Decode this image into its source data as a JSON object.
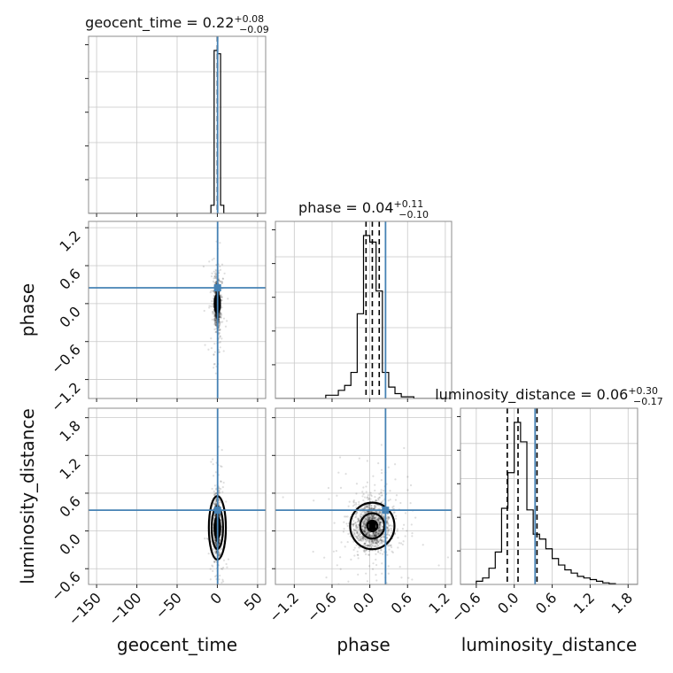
{
  "chart_data": {
    "type": "corner",
    "parameters": [
      "geocent_time",
      "phase",
      "luminosity_distance"
    ],
    "axis_labels": [
      "geocent_time",
      "phase",
      "luminosity_distance"
    ],
    "ranges": {
      "geocent_time": [
        -160,
        60
      ],
      "phase": [
        -1.5,
        1.3
      ],
      "luminosity_distance": [
        -0.85,
        1.95
      ]
    },
    "ticks": {
      "geocent_time": {
        "values": [
          -150,
          -100,
          -50,
          0,
          50
        ],
        "labels": [
          "−150",
          "−100",
          "−50",
          "0",
          "50"
        ]
      },
      "phase": {
        "values": [
          -1.2,
          -0.6,
          0.0,
          0.6,
          1.2
        ],
        "labels": [
          "−1.2",
          "−0.6",
          "0.0",
          "0.6",
          "1.2"
        ]
      },
      "luminosity_distance": {
        "values": [
          -0.6,
          0.0,
          0.6,
          1.2,
          1.8
        ],
        "labels": [
          "−0.6",
          "0.0",
          "0.6",
          "1.2",
          "1.8"
        ]
      }
    },
    "titles": [
      {
        "param": "geocent_time",
        "label": "geocent_time = 0.22",
        "plus": "+0.08",
        "minus": "−0.09"
      },
      {
        "param": "phase",
        "label": "phase = 0.04",
        "plus": "+0.11",
        "minus": "−0.10"
      },
      {
        "param": "luminosity_distance",
        "label": "luminosity_distance = 0.06",
        "plus": "+0.30",
        "minus": "−0.17"
      }
    ],
    "truths": {
      "geocent_time": 0.3,
      "phase": 0.25,
      "luminosity_distance": 0.33
    },
    "quantiles": {
      "geocent_time": [
        0.13,
        0.22,
        0.3
      ],
      "phase": [
        -0.06,
        0.04,
        0.15
      ],
      "luminosity_distance": [
        -0.11,
        0.06,
        0.36
      ]
    },
    "histograms": {
      "geocent_time": {
        "edges": [
          -160,
          -8,
          -4,
          0,
          4,
          8,
          60
        ],
        "counts": [
          0,
          0.05,
          1.0,
          0.98,
          0.05,
          0
        ]
      },
      "phase": {
        "edges": [
          -1.5,
          -0.7,
          -0.5,
          -0.4,
          -0.3,
          -0.2,
          -0.1,
          0.0,
          0.1,
          0.2,
          0.3,
          0.4,
          0.5,
          0.7,
          1.3
        ],
        "counts": [
          0,
          0.02,
          0.05,
          0.08,
          0.16,
          0.52,
          1.0,
          0.96,
          0.66,
          0.16,
          0.07,
          0.03,
          0.01,
          0
        ]
      },
      "luminosity_distance": {
        "edges": [
          -0.85,
          -0.6,
          -0.5,
          -0.4,
          -0.3,
          -0.2,
          -0.1,
          0.0,
          0.1,
          0.2,
          0.3,
          0.4,
          0.5,
          0.6,
          0.7,
          0.8,
          0.9,
          1.0,
          1.1,
          1.2,
          1.3,
          1.4,
          1.5,
          1.6,
          1.95
        ],
        "counts": [
          0,
          0.02,
          0.04,
          0.1,
          0.2,
          0.47,
          0.69,
          1.0,
          0.88,
          0.46,
          0.31,
          0.28,
          0.22,
          0.16,
          0.12,
          0.09,
          0.07,
          0.05,
          0.04,
          0.03,
          0.02,
          0.01,
          0.005,
          0
        ]
      }
    },
    "contours_2d": {
      "phase_vs_geocent_time": {
        "center": [
          0,
          0.0
        ],
        "sigma": [
          1.5,
          0.1
        ],
        "levels": [
          0.5,
          1.0
        ]
      },
      "luminosity_distance_vs_geocent_time": {
        "center": [
          0,
          0.05
        ],
        "sigma": [
          1.6,
          0.12
        ],
        "levels": [
          1.0,
          2.0,
          3.0
        ]
      },
      "luminosity_distance_vs_phase": {
        "center": [
          0.04,
          0.08
        ],
        "sigma": [
          0.1,
          0.12
        ],
        "levels": [
          0.5,
          1.2,
          2.2
        ]
      }
    },
    "grid": true,
    "colors": {
      "truth": "#4682b4",
      "hist": "#000000",
      "grid": "#c8c8c8"
    }
  }
}
